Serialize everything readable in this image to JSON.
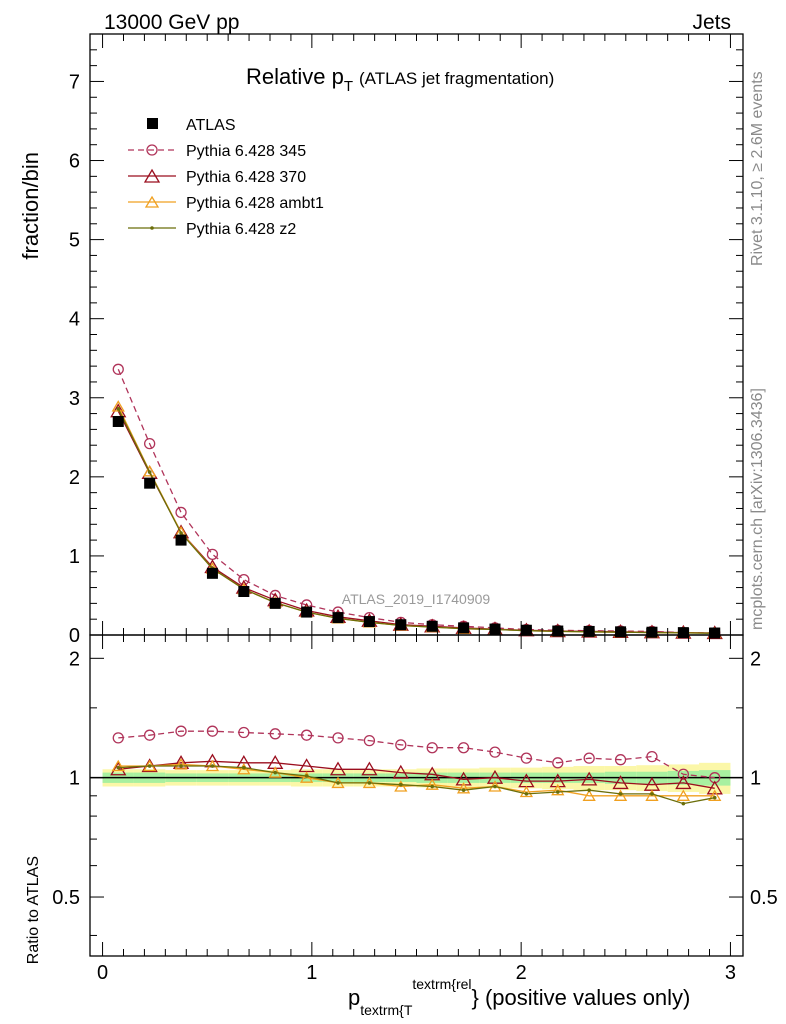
{
  "header": {
    "left": "13000 GeV pp",
    "right": "Jets"
  },
  "side_labels": {
    "top": "Rivet 3.1.10, ≥ 2.6M events",
    "bottom": "mcplots.cern.ch [arXiv:1306.3436]"
  },
  "watermark": "ATLAS_2019_I1740909",
  "chart_data": [
    {
      "type": "line",
      "title_main": "Relative p",
      "title_sub": "T",
      "title_rest": "(ATLAS jet fragmentation)",
      "ylabel": "fraction/bin",
      "ylim": [
        0,
        7.6
      ],
      "yticks": [
        0,
        1,
        2,
        3,
        4,
        5,
        6,
        7
      ],
      "x": [
        0.075,
        0.225,
        0.375,
        0.525,
        0.675,
        0.825,
        0.975,
        1.125,
        1.275,
        1.425,
        1.575,
        1.725,
        1.875,
        2.025,
        2.175,
        2.325,
        2.475,
        2.625,
        2.775,
        2.925
      ],
      "legend": [
        "ATLAS",
        "Pythia 6.428 345",
        "Pythia 6.428 370",
        "Pythia 6.428 ambt1",
        "Pythia 6.428 z2"
      ],
      "series": [
        {
          "name": "ATLAS",
          "color": "#000000",
          "marker": "square",
          "values": [
            2.7,
            1.92,
            1.2,
            0.78,
            0.55,
            0.4,
            0.29,
            0.22,
            0.17,
            0.13,
            0.11,
            0.09,
            0.075,
            0.06,
            0.05,
            0.045,
            0.04,
            0.035,
            0.03,
            0.025
          ]
        },
        {
          "name": "Pythia 6.428 345",
          "color": "#b0345a",
          "marker": "circle",
          "dash": "6,4",
          "values": [
            3.36,
            2.42,
            1.55,
            1.02,
            0.7,
            0.5,
            0.38,
            0.29,
            0.22,
            0.16,
            0.13,
            0.11,
            0.09,
            0.07,
            0.06,
            0.055,
            0.05,
            0.045,
            0.03,
            0.025
          ]
        },
        {
          "name": "Pythia 6.428 370",
          "color": "#9b0e1e",
          "marker": "triangle",
          "values": [
            2.83,
            2.05,
            1.3,
            0.86,
            0.6,
            0.44,
            0.31,
            0.23,
            0.18,
            0.13,
            0.11,
            0.09,
            0.075,
            0.06,
            0.05,
            0.045,
            0.04,
            0.035,
            0.03,
            0.025
          ]
        },
        {
          "name": "Pythia 6.428 ambt1",
          "color": "#f0a020",
          "marker": "triangle",
          "values": [
            2.89,
            2.07,
            1.3,
            0.84,
            0.58,
            0.41,
            0.29,
            0.21,
            0.16,
            0.12,
            0.1,
            0.08,
            0.07,
            0.055,
            0.045,
            0.04,
            0.035,
            0.03,
            0.028,
            0.024
          ]
        },
        {
          "name": "Pythia 6.428 z2",
          "color": "#6b6e0a",
          "marker": "dot",
          "values": [
            2.86,
            2.06,
            1.29,
            0.84,
            0.58,
            0.41,
            0.29,
            0.21,
            0.16,
            0.12,
            0.1,
            0.08,
            0.07,
            0.055,
            0.045,
            0.04,
            0.035,
            0.03,
            0.026,
            0.022
          ]
        }
      ]
    },
    {
      "type": "line",
      "ylabel": "Ratio to ATLAS",
      "xlabel_main": "p",
      "xlabel_sub": "textrm{T",
      "xlabel_sup": "textrm{rel",
      "xlabel_rest": "} (positive values only)",
      "xlim": [
        -0.06,
        3.06
      ],
      "xticks": [
        0,
        1,
        2,
        3
      ],
      "ylim": [
        0.355,
        2.29
      ],
      "yticks": [
        0.5,
        1,
        2
      ],
      "yticklabels": [
        "0.5",
        "1",
        "2"
      ],
      "x": [
        0.075,
        0.225,
        0.375,
        0.525,
        0.675,
        0.825,
        0.975,
        1.125,
        1.275,
        1.425,
        1.575,
        1.725,
        1.875,
        2.025,
        2.175,
        2.325,
        2.475,
        2.625,
        2.775,
        2.925
      ],
      "band_inner": [
        0.03,
        0.03,
        0.025,
        0.025,
        0.025,
        0.025,
        0.025,
        0.025,
        0.025,
        0.025,
        0.03,
        0.03,
        0.03,
        0.03,
        0.03,
        0.03,
        0.035,
        0.035,
        0.04,
        0.045
      ],
      "band_outer": [
        0.05,
        0.05,
        0.045,
        0.045,
        0.045,
        0.045,
        0.05,
        0.05,
        0.05,
        0.05,
        0.055,
        0.055,
        0.06,
        0.06,
        0.065,
        0.07,
        0.07,
        0.075,
        0.08,
        0.09
      ],
      "series": [
        {
          "name": "Pythia 6.428 345",
          "values": [
            1.26,
            1.28,
            1.31,
            1.31,
            1.3,
            1.29,
            1.28,
            1.26,
            1.24,
            1.21,
            1.19,
            1.19,
            1.16,
            1.12,
            1.09,
            1.12,
            1.11,
            1.13,
            1.02,
            1.0
          ]
        },
        {
          "name": "Pythia 6.428 370",
          "values": [
            1.05,
            1.07,
            1.09,
            1.1,
            1.09,
            1.09,
            1.07,
            1.05,
            1.05,
            1.03,
            1.02,
            0.99,
            1.0,
            0.98,
            0.98,
            0.99,
            0.97,
            0.96,
            0.97,
            0.94
          ]
        },
        {
          "name": "Pythia 6.428 ambt1",
          "values": [
            1.07,
            1.07,
            1.08,
            1.07,
            1.05,
            1.03,
            1.0,
            0.97,
            0.97,
            0.95,
            0.96,
            0.94,
            0.95,
            0.92,
            0.93,
            0.9,
            0.9,
            0.9,
            0.9,
            0.9
          ]
        },
        {
          "name": "Pythia 6.428 z2",
          "values": [
            1.06,
            1.07,
            1.07,
            1.07,
            1.06,
            1.03,
            1.01,
            0.97,
            0.97,
            0.96,
            0.95,
            0.93,
            0.95,
            0.91,
            0.92,
            0.93,
            0.91,
            0.91,
            0.86,
            0.89
          ]
        }
      ]
    }
  ]
}
